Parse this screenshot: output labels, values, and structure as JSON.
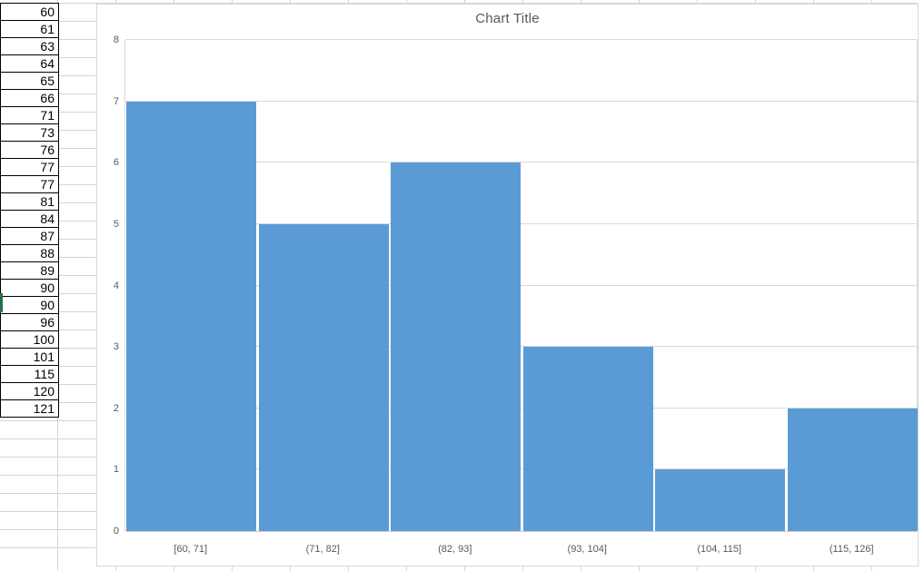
{
  "spreadsheet": {
    "column_values": [
      "60",
      "61",
      "63",
      "64",
      "65",
      "66",
      "71",
      "73",
      "76",
      "77",
      "77",
      "81",
      "84",
      "87",
      "88",
      "89",
      "90",
      "90",
      "96",
      "100",
      "101",
      "115",
      "120",
      "121"
    ],
    "active_row_index": 16,
    "selection_color": "#217346",
    "gridline_color": "#d4d4d4",
    "cell_border_color": "#000000"
  },
  "chart_data": {
    "type": "bar",
    "subtype": "histogram",
    "title": "Chart Title",
    "categories": [
      "[60, 71]",
      "(71, 82]",
      "(82, 93]",
      "(93, 104]",
      "(104, 115]",
      "(115, 126]"
    ],
    "values": [
      7,
      5,
      6,
      3,
      1,
      2
    ],
    "xlabel": "",
    "ylabel": "",
    "ylim": [
      0,
      8
    ],
    "yticks": [
      "0",
      "1",
      "2",
      "3",
      "4",
      "5",
      "6",
      "7",
      "8"
    ],
    "grid": true,
    "legend": "none",
    "bar_color": "#5b9bd5",
    "gridline_color": "#d9d9d9",
    "axis_line_color": "#c9c9c9",
    "axis_text_color": "#595959",
    "title_color": "#595959"
  }
}
